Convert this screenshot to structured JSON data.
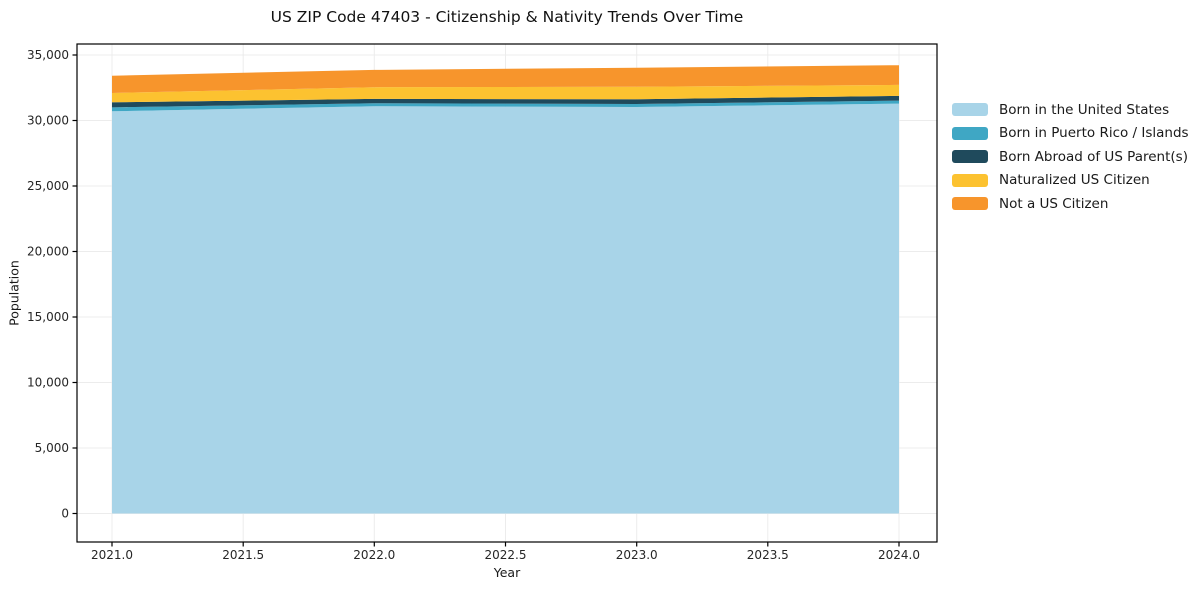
{
  "figure": {
    "title": "US ZIP Code 47403 - Citizenship & Nativity Trends Over Time",
    "xlabel": "Year",
    "ylabel": "Population"
  },
  "axes": {
    "x_ticks": [
      "2021.0",
      "2021.5",
      "2022.0",
      "2022.5",
      "2023.0",
      "2023.5",
      "2024.0"
    ],
    "y_ticks": [
      "0",
      "5,000",
      "10,000",
      "15,000",
      "20,000",
      "25,000",
      "30,000",
      "35,000"
    ]
  },
  "colors": {
    "grid": "#ececec",
    "spine": "#000000",
    "tick_text": "#262626"
  },
  "chart_data": {
    "type": "area",
    "stacked": true,
    "title": "US ZIP Code 47403 - Citizenship & Nativity Trends Over Time",
    "xlabel": "Year",
    "ylabel": "Population",
    "x": [
      2021,
      2022,
      2023,
      2024
    ],
    "xlim": [
      2020.85,
      2024.15
    ],
    "ylim": [
      0,
      35000
    ],
    "grid": true,
    "legend_position": "center-right-outside",
    "series": [
      {
        "name": "Born in the United States",
        "color": "#a8d4e8",
        "values": [
          30700,
          31090,
          31030,
          31290
        ]
      },
      {
        "name": "Born in Puerto Rico / Islands",
        "color": "#3fa7c4",
        "values": [
          300,
          230,
          230,
          230
        ]
      },
      {
        "name": "Born Abroad of US Parent(s)",
        "color": "#1f4a5c",
        "values": [
          390,
          330,
          360,
          360
        ]
      },
      {
        "name": "Naturalized US Citizen",
        "color": "#fcc230",
        "values": [
          710,
          890,
          960,
          840
        ]
      },
      {
        "name": "Not a US Citizen",
        "color": "#f7952c",
        "values": [
          1320,
          1320,
          1450,
          1500
        ]
      }
    ],
    "totals": [
      33420,
      33860,
      34030,
      34220
    ]
  }
}
